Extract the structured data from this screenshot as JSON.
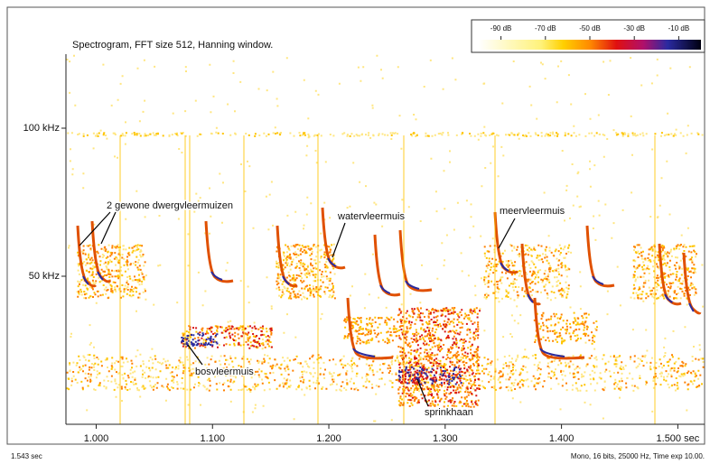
{
  "chart_data": {
    "type": "spectrogram",
    "title": "Spectrogram, FFT size 512, Hanning window.",
    "xlim": [
      0.974,
      1.523
    ],
    "xticks": [
      {
        "value": 1.0,
        "label": "1.000"
      },
      {
        "value": 1.1,
        "label": "1.100"
      },
      {
        "value": 1.2,
        "label": "1.200"
      },
      {
        "value": 1.3,
        "label": "1.300"
      },
      {
        "value": 1.4,
        "label": "1.400"
      },
      {
        "value": 1.5,
        "label": "1.500 sec"
      }
    ],
    "ylim": [
      0,
      125
    ],
    "yticks": [
      {
        "value": 50,
        "label": "50 kHz"
      },
      {
        "value": 100,
        "label": "100 kHz"
      }
    ],
    "colorbar": {
      "lim": [
        -100,
        0
      ],
      "ticks": [
        {
          "value": -90,
          "label": "-90 dB"
        },
        {
          "value": -70,
          "label": "-70 dB"
        },
        {
          "value": -50,
          "label": "-50 dB"
        },
        {
          "value": -30,
          "label": "-30 dB"
        },
        {
          "value": -10,
          "label": "-10 dB"
        }
      ]
    },
    "annotations": [
      "2 gewone dwergvleermuizen",
      "watervleermuis",
      "meervleermuis",
      "bosvleermuis",
      "sprinkhaan"
    ],
    "footer_left": "1.543 sec",
    "footer_right": "Mono, 16 bits, 25000 Hz, Time exp 10.00."
  }
}
